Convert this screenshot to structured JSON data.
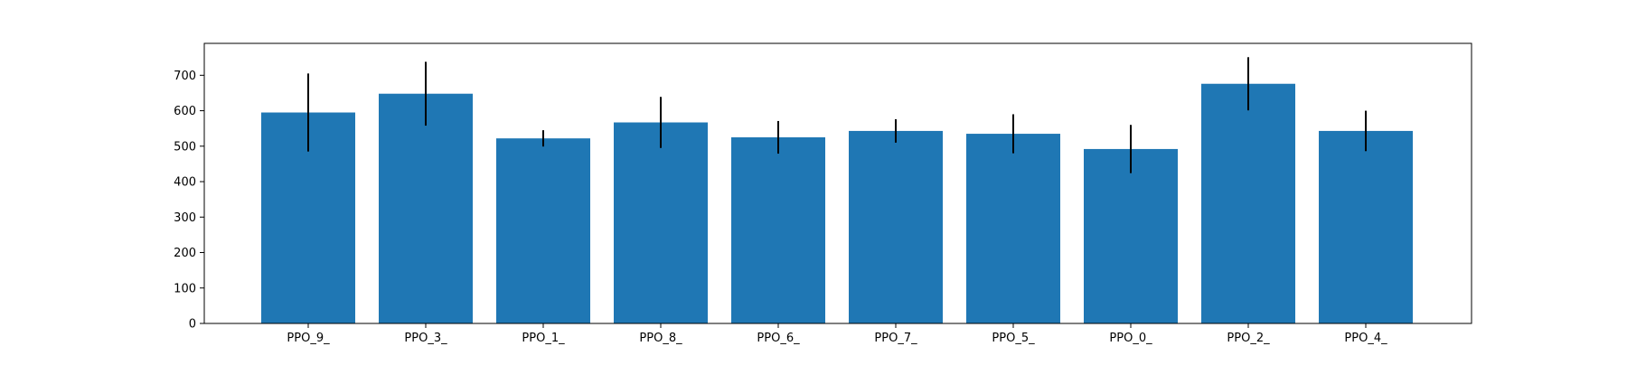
{
  "chart_data": {
    "type": "bar",
    "title": "",
    "xlabel": "",
    "ylabel": "",
    "categories": [
      "PPO_9_",
      "PPO_3_",
      "PPO_1_",
      "PPO_8_",
      "PPO_6_",
      "PPO_7_",
      "PPO_5_",
      "PPO_0_",
      "PPO_2_",
      "PPO_4_"
    ],
    "values": [
      595,
      648,
      522,
      567,
      525,
      543,
      535,
      492,
      676,
      543
    ],
    "errors": [
      110,
      90,
      23,
      72,
      46,
      33,
      55,
      68,
      75,
      57
    ],
    "ylim": [
      0,
      790
    ],
    "yticks": [
      0,
      100,
      200,
      300,
      400,
      500,
      600,
      700
    ],
    "grid": false,
    "bar_color": "#1f77b4",
    "error_color": "#000000"
  }
}
